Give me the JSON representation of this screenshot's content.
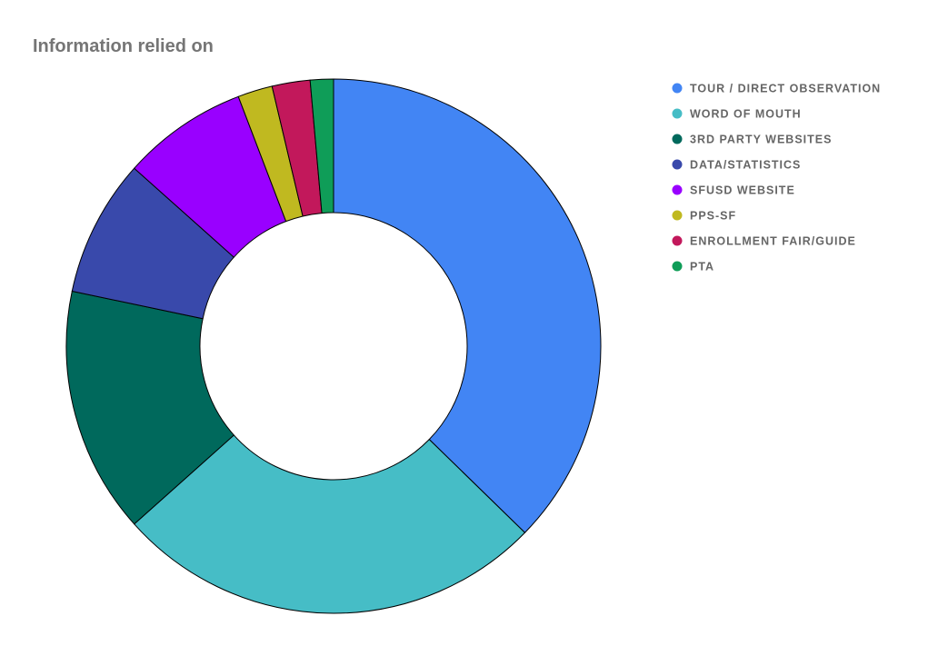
{
  "chart_data": {
    "type": "pie",
    "donut": true,
    "title": "Information relied on",
    "categories": [
      "TOUR / DIRECT OBSERVATION",
      "WORD OF MOUTH",
      "3RD PARTY WEBSITES",
      "DATA/STATISTICS",
      "SFUSD WEBSITE",
      "PPS-SF",
      "ENROLLMENT FAIR/GUIDE",
      "PTA"
    ],
    "values": [
      37.3,
      26.1,
      14.9,
      8.3,
      7.6,
      2.1,
      2.3,
      1.4
    ],
    "colors": [
      "#4285f4",
      "#46bdc6",
      "#00695c",
      "#3949ab",
      "#9900ff",
      "#c0b920",
      "#c2185b",
      "#0f9d58"
    ],
    "legend": "right"
  }
}
